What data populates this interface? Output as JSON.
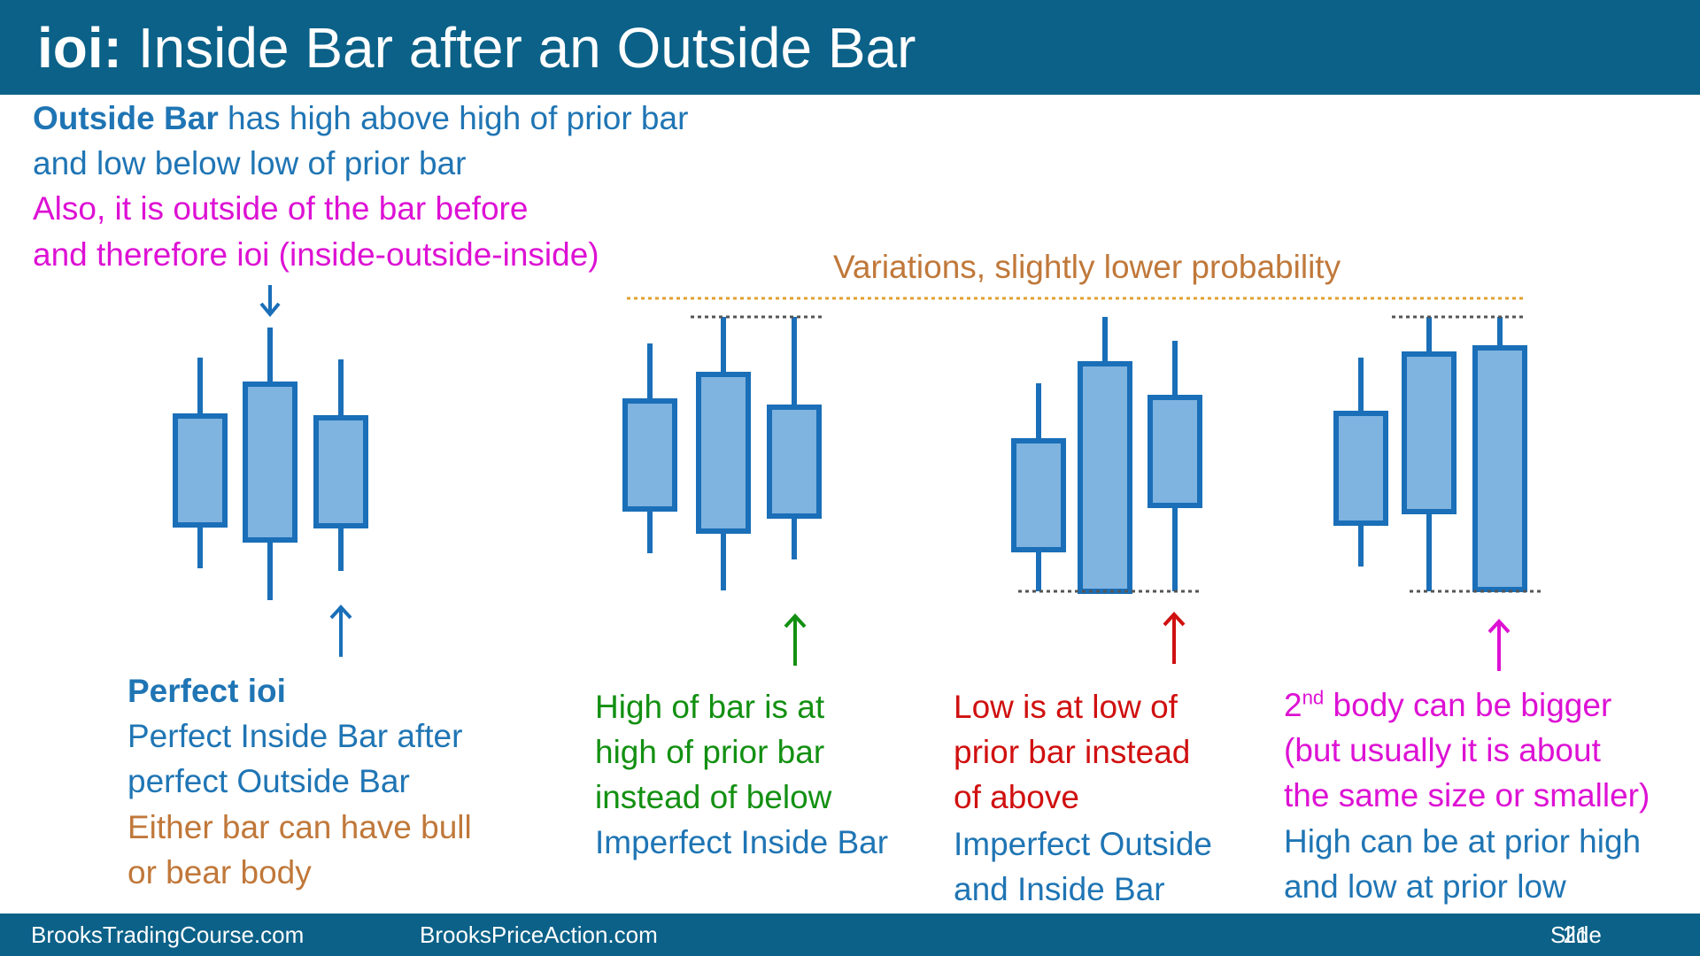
{
  "title": {
    "prefix": "ioi:",
    "rest": "Inside Bar after an Outside Bar"
  },
  "intro": {
    "bold": "Outside Bar",
    "line1_rest": " has high above high of prior bar",
    "line2": "and low below low of prior bar",
    "line3": "Also, it is outside of the bar before",
    "line4": "and therefore ioi (inside-outside-inside)"
  },
  "variations_label": "Variations, slightly lower probability",
  "panels": [
    {
      "heading": "Perfect ioi",
      "lines": [
        "Perfect Inside Bar after",
        "perfect Outside Bar"
      ],
      "extra": [
        "Either bar can have bull",
        "or bear body"
      ]
    },
    {
      "lines_green": [
        "High of bar is at",
        "high of prior bar",
        "instead of below"
      ],
      "lines_blue": [
        "Imperfect Inside Bar"
      ]
    },
    {
      "lines_red": [
        "Low is at low of",
        "prior bar instead",
        "of above"
      ],
      "lines_blue": [
        "Imperfect Outside",
        "and Inside Bar"
      ]
    },
    {
      "sup_prefix": "2",
      "sup": "nd",
      "line1_rest": " body can be bigger",
      "lines_magenta": [
        "(but usually it is about",
        "the same size or smaller)"
      ],
      "lines_blue": [
        "High can be at prior high",
        "and low at prior low"
      ]
    }
  ],
  "footer": {
    "left": "BrooksTradingCourse.com",
    "mid": "BrooksPriceAction.com",
    "slide_label": "Slide",
    "slide_num": "21"
  },
  "colors": {
    "header": "#0b6188",
    "candle_fill": "#7fb3e0",
    "candle_stroke": "#1a6fb8",
    "green": "#139012",
    "red": "#d01010",
    "magenta": "#dd11d4",
    "orange": "#c0783a"
  },
  "icons": [
    "arrow-down-icon",
    "arrow-up-icon"
  ]
}
